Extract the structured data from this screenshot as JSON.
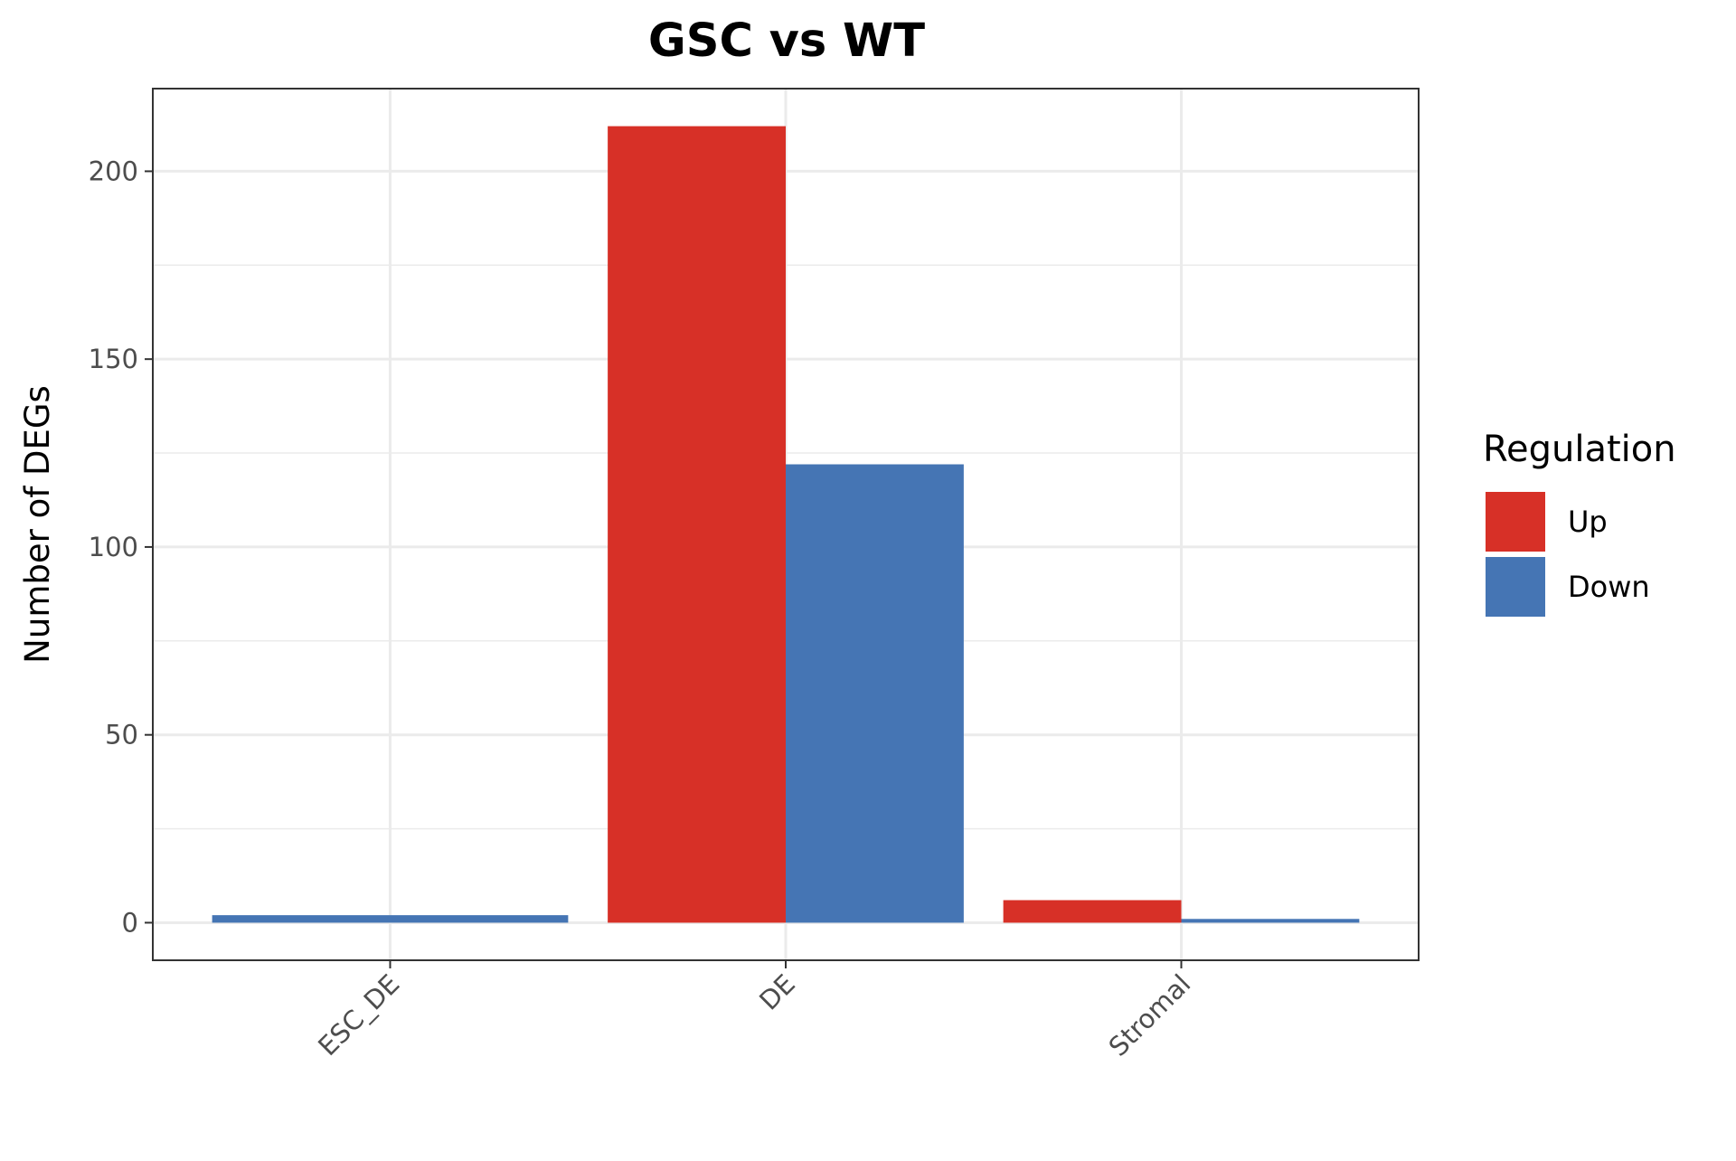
{
  "chart_data": {
    "type": "bar",
    "title": "GSC vs WT",
    "xlabel": "",
    "ylabel": "Number of DEGs",
    "categories": [
      "ESC_DE",
      "DE",
      "Stromal"
    ],
    "series": [
      {
        "name": "Up",
        "color": "#D73027",
        "values": [
          0,
          212,
          6
        ]
      },
      {
        "name": "Down",
        "color": "#4575B4",
        "values": [
          2,
          122,
          1
        ]
      }
    ],
    "y_ticks": [
      0,
      50,
      100,
      150,
      200
    ],
    "ylim": [
      -10,
      222
    ],
    "grid": true,
    "legend": {
      "title": "Regulation",
      "position": "right",
      "entries": [
        "Up",
        "Down"
      ]
    }
  }
}
